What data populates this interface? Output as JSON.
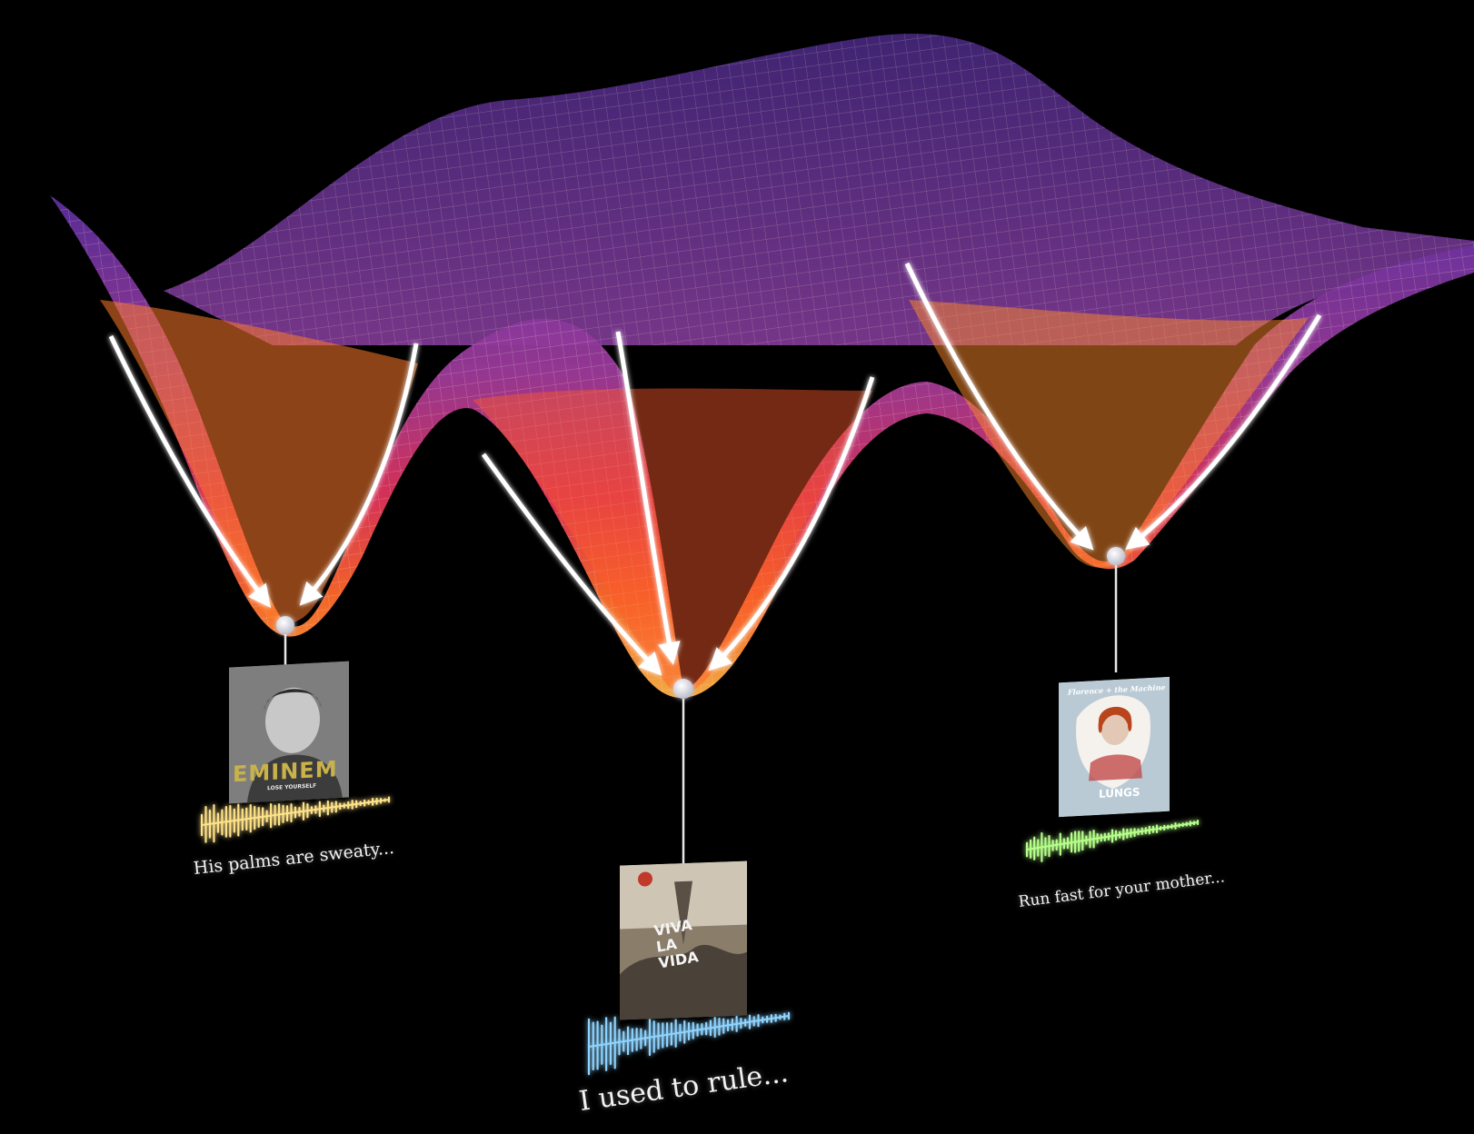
{
  "memories": [
    {
      "id": "left",
      "album_text": "EMINEM",
      "album_subtext": "LOSE YOURSELF",
      "lyric": "His palms are sweaty...",
      "wave_color": "#ffe38a"
    },
    {
      "id": "center",
      "album_text": "VIVA LA VIDA",
      "lyric": "I used to rule...",
      "wave_color": "#8fd4ff"
    },
    {
      "id": "right",
      "album_text": "LUNGS",
      "album_subtext": "Florence + the Machine",
      "lyric": "Run fast for your mother...",
      "wave_color": "#b6ff8a"
    }
  ],
  "colors": {
    "background": "#000000",
    "surface_low": "#ff9a2e",
    "surface_mid": "#e0335a",
    "surface_high": "#6a3aa8",
    "arrows": "#ffffff"
  }
}
